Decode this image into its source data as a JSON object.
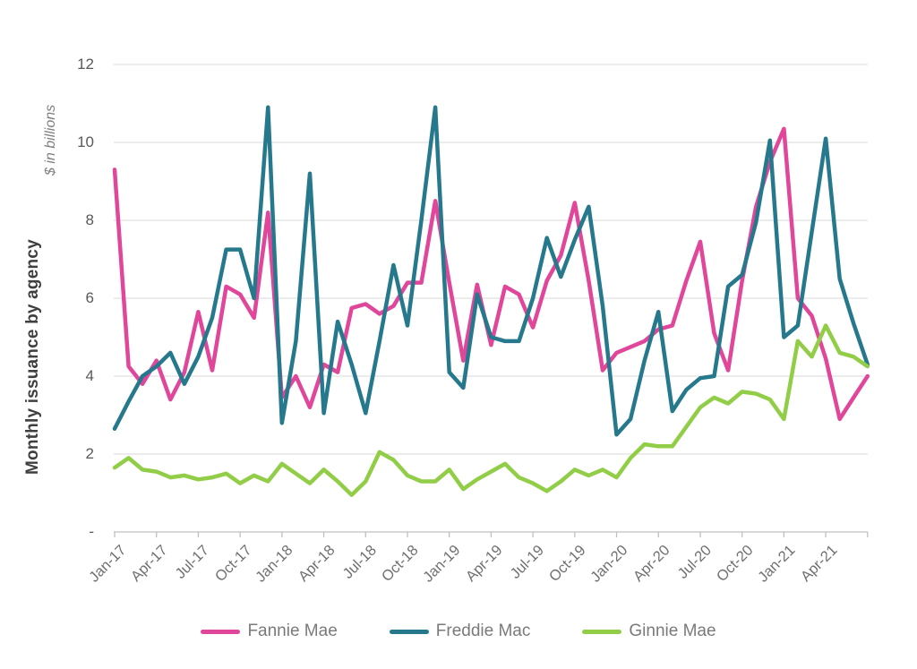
{
  "chart_data": {
    "type": "line",
    "title": "",
    "ylabel": "Monthly issuance by agency",
    "units_label": "$ in billions",
    "xlabel": "",
    "ylim": [
      0,
      12
    ],
    "grid": "horizontal",
    "legend_position": "bottom",
    "yticks": [
      "12",
      "10",
      "8",
      "6",
      "4",
      "2",
      "-"
    ],
    "ytick_values": [
      12,
      10,
      8,
      6,
      4,
      2,
      0
    ],
    "xtick_labels": [
      "Jan-17",
      "Apr-17",
      "Jul-17",
      "Oct-17",
      "Jan-18",
      "Apr-18",
      "Jul-18",
      "Oct-18",
      "Jan-19",
      "Apr-19",
      "Jul-19",
      "Oct-19",
      "Jan-20",
      "Apr-20",
      "Jul-20",
      "Oct-20",
      "Jan-21",
      "Apr-21"
    ],
    "x": [
      "Jan-17",
      "Feb-17",
      "Mar-17",
      "Apr-17",
      "May-17",
      "Jun-17",
      "Jul-17",
      "Aug-17",
      "Sep-17",
      "Oct-17",
      "Nov-17",
      "Dec-17",
      "Jan-18",
      "Feb-18",
      "Mar-18",
      "Apr-18",
      "May-18",
      "Jun-18",
      "Jul-18",
      "Aug-18",
      "Sep-18",
      "Oct-18",
      "Nov-18",
      "Dec-18",
      "Jan-19",
      "Feb-19",
      "Mar-19",
      "Apr-19",
      "May-19",
      "Jun-19",
      "Jul-19",
      "Aug-19",
      "Sep-19",
      "Oct-19",
      "Nov-19",
      "Dec-19",
      "Jan-20",
      "Feb-20",
      "Mar-20",
      "Apr-20",
      "May-20",
      "Jun-20",
      "Jul-20",
      "Aug-20",
      "Sep-20",
      "Oct-20",
      "Nov-20",
      "Dec-20",
      "Jan-21",
      "Feb-21",
      "Mar-21",
      "Apr-21",
      "May-21",
      "Jun-21",
      "Jul-21"
    ],
    "series": [
      {
        "name": "Fannie Mae",
        "color": "#e0479a",
        "values": [
          9.3,
          4.25,
          3.8,
          4.4,
          3.4,
          4.1,
          5.65,
          4.15,
          6.3,
          6.1,
          5.5,
          8.2,
          3.45,
          4.0,
          3.2,
          4.3,
          4.1,
          5.75,
          5.85,
          5.6,
          5.8,
          6.4,
          6.4,
          8.5,
          6.4,
          4.4,
          6.35,
          4.8,
          6.3,
          6.1,
          5.25,
          6.45,
          7.1,
          8.45,
          6.45,
          4.15,
          4.6,
          4.75,
          4.9,
          5.2,
          5.3,
          6.45,
          7.45,
          5.1,
          4.15,
          6.45,
          8.35,
          9.5,
          10.35,
          6.0,
          5.55,
          4.45,
          2.9,
          3.45,
          4.0
        ]
      },
      {
        "name": "Freddie Mac",
        "color": "#26798c",
        "values": [
          2.65,
          3.35,
          4.0,
          4.25,
          4.6,
          3.8,
          4.5,
          5.5,
          7.25,
          7.25,
          6.0,
          10.9,
          2.8,
          4.9,
          9.2,
          3.05,
          5.4,
          4.3,
          3.05,
          4.9,
          6.85,
          5.3,
          8.0,
          10.9,
          4.1,
          3.7,
          6.1,
          5.0,
          4.9,
          4.9,
          6.0,
          7.55,
          6.55,
          7.5,
          8.35,
          5.8,
          2.5,
          2.9,
          4.4,
          5.65,
          3.1,
          3.65,
          3.95,
          4.0,
          6.3,
          6.6,
          7.95,
          10.05,
          5.0,
          5.3,
          7.7,
          10.1,
          6.5,
          5.35,
          4.3
        ]
      },
      {
        "name": "Ginnie Mae",
        "color": "#92cd47",
        "values": [
          1.65,
          1.9,
          1.6,
          1.55,
          1.4,
          1.45,
          1.35,
          1.4,
          1.5,
          1.25,
          1.45,
          1.3,
          1.75,
          1.5,
          1.25,
          1.6,
          1.3,
          0.95,
          1.3,
          2.05,
          1.85,
          1.45,
          1.3,
          1.3,
          1.6,
          1.1,
          1.35,
          1.55,
          1.75,
          1.4,
          1.25,
          1.05,
          1.3,
          1.6,
          1.45,
          1.6,
          1.4,
          1.9,
          2.25,
          2.2,
          2.2,
          2.7,
          3.2,
          3.45,
          3.3,
          3.6,
          3.55,
          3.4,
          2.9,
          4.9,
          4.5,
          5.3,
          4.6,
          4.5,
          4.25
        ]
      }
    ],
    "colors": {
      "gridline": "#d9d9d9",
      "axis_line": "#c0c0c0",
      "tick_mark": "#c0c0c0"
    }
  }
}
